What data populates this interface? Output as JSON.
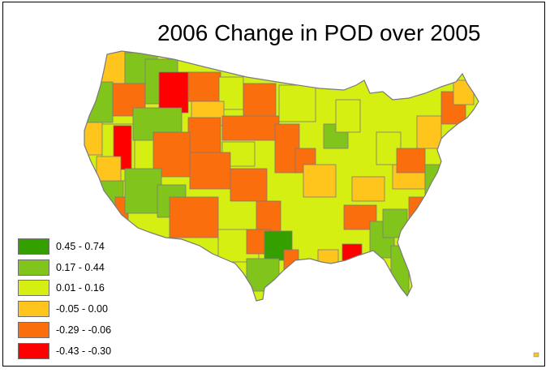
{
  "map": {
    "title": "2006 Change in POD over 2005",
    "legend": [
      {
        "label": "0.45 - 0.74",
        "color": "#34a000"
      },
      {
        "label": "0.17 - 0.44",
        "color": "#80c41c"
      },
      {
        "label": "0.01 - 0.16",
        "color": "#d6ef12"
      },
      {
        "label": "-0.05 - 0.00",
        "color": "#ffc51c"
      },
      {
        "label": "-0.29 - -0.06",
        "color": "#fb6e0e"
      },
      {
        "label": "-0.43 - -0.30",
        "color": "#ff0000"
      }
    ],
    "boundary_color": "#7a7a7a"
  }
}
